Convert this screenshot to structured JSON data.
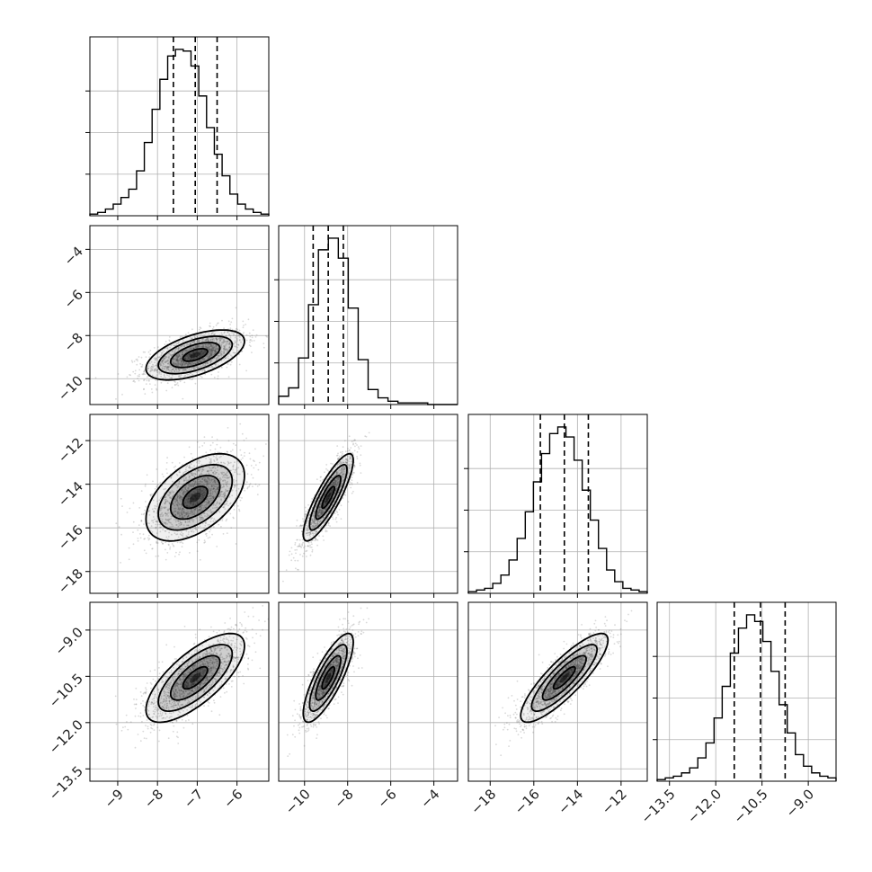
{
  "chart_data": {
    "type": "corner",
    "parameters": [
      {
        "range": [
          -9.7,
          -5.2
        ],
        "ticks": [
          -9,
          -8,
          -7,
          -6
        ],
        "tick_labels": [
          "−9",
          "−8",
          "−7",
          "−6"
        ],
        "mean": -7.05,
        "sd": 0.62,
        "quantiles": [
          -7.6,
          -7.05,
          -6.5
        ]
      },
      {
        "range": [
          -11.2,
          -2.9
        ],
        "ticks": [
          -10,
          -8,
          -6,
          -4
        ],
        "tick_labels": [
          "−10",
          "−8",
          "−6",
          "−4"
        ],
        "mean": -8.9,
        "sd": 0.58,
        "quantiles": [
          -9.6,
          -8.9,
          -8.2
        ]
      },
      {
        "range": [
          -19.0,
          -10.8
        ],
        "ticks": [
          -18,
          -16,
          -14,
          -12
        ],
        "tick_labels": [
          "−18",
          "−16",
          "−14",
          "−12"
        ],
        "mean": -14.6,
        "sd": 1.0,
        "quantiles": [
          -15.7,
          -14.6,
          -13.5
        ]
      },
      {
        "range": [
          -13.9,
          -8.1
        ],
        "ticks": [
          -13.5,
          -12.0,
          -10.5,
          -9.0
        ],
        "tick_labels": [
          "−13.5",
          "−12.0",
          "−10.5",
          "−9.0"
        ],
        "mean": -10.55,
        "sd": 0.72,
        "quantiles": [
          -11.4,
          -10.55,
          -9.75
        ]
      }
    ],
    "correlations": [
      [
        1,
        0.55,
        0.5,
        0.72
      ],
      [
        0.55,
        1,
        0.85,
        0.8
      ],
      [
        0.5,
        0.85,
        1,
        0.85
      ],
      [
        0.72,
        0.8,
        0.85,
        1
      ]
    ],
    "histograms": [
      [
        0.01,
        0.02,
        0.04,
        0.07,
        0.11,
        0.16,
        0.27,
        0.44,
        0.64,
        0.82,
        0.96,
        1.0,
        0.99,
        0.9,
        0.72,
        0.53,
        0.37,
        0.24,
        0.13,
        0.07,
        0.04,
        0.02,
        0.01
      ],
      [
        0.05,
        0.1,
        0.28,
        0.6,
        0.93,
        1.0,
        0.88,
        0.58,
        0.27,
        0.09,
        0.04,
        0.02,
        0.01,
        0.01,
        0.01,
        0.0,
        0.0,
        0.0
      ],
      [
        0.01,
        0.02,
        0.03,
        0.06,
        0.11,
        0.2,
        0.33,
        0.49,
        0.67,
        0.84,
        0.96,
        1.0,
        0.94,
        0.8,
        0.62,
        0.44,
        0.27,
        0.14,
        0.07,
        0.03,
        0.02,
        0.01
      ],
      [
        0.01,
        0.02,
        0.03,
        0.05,
        0.08,
        0.14,
        0.23,
        0.38,
        0.57,
        0.77,
        0.92,
        1.0,
        0.96,
        0.84,
        0.66,
        0.46,
        0.29,
        0.16,
        0.09,
        0.05,
        0.03,
        0.02
      ]
    ],
    "quantile_levels": [
      0.16,
      0.5,
      0.84
    ],
    "contour_levels_sigma": [
      0.5,
      1.0,
      1.5,
      2.0
    ],
    "grid": true,
    "colors": {
      "points": "#777777",
      "density": "#000000",
      "contours": "#000000",
      "grid": "#b0b0b0"
    }
  }
}
